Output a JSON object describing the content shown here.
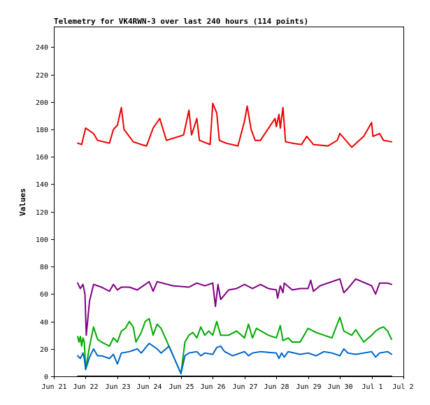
{
  "chart_data": {
    "type": "line",
    "title": "Telemetry for VK4RWN-3 over last 240 hours (114 points)",
    "xlabel": "",
    "ylabel": "Values",
    "xlim": [
      "2021-06-21",
      "2021-07-02"
    ],
    "ylim": [
      0,
      255
    ],
    "x_ticks": [
      "Jun 21",
      "Jun 22",
      "Jun 23",
      "Jun 24",
      "Jun 25",
      "Jun 26",
      "Jun 27",
      "Jun 28",
      "Jun 29",
      "Jun 30",
      "Jul 1",
      "Jul 2"
    ],
    "y_ticks": [
      0,
      20,
      40,
      60,
      80,
      100,
      120,
      140,
      160,
      180,
      200,
      220,
      240
    ],
    "grid": false,
    "legend": "none",
    "series": [
      {
        "color": "#ee0000",
        "points": [
          [
            "2021-06-21T18:00",
            170
          ],
          [
            "2021-06-21T21:00",
            169
          ],
          [
            "2021-06-22T00:00",
            181
          ],
          [
            "2021-06-22T06:00",
            177
          ],
          [
            "2021-06-22T09:00",
            172
          ],
          [
            "2021-06-22T18:00",
            170
          ],
          [
            "2021-06-22T21:00",
            180
          ],
          [
            "2021-06-23T00:00",
            183
          ],
          [
            "2021-06-23T03:00",
            196
          ],
          [
            "2021-06-23T05:00",
            180
          ],
          [
            "2021-06-23T12:00",
            171
          ],
          [
            "2021-06-23T18:00",
            169
          ],
          [
            "2021-06-23T22:00",
            168
          ],
          [
            "2021-06-24T03:00",
            181
          ],
          [
            "2021-06-24T08:00",
            188
          ],
          [
            "2021-06-24T13:00",
            172
          ],
          [
            "2021-06-25T02:00",
            176
          ],
          [
            "2021-06-25T06:00",
            194
          ],
          [
            "2021-06-25T08:00",
            176
          ],
          [
            "2021-06-25T12:00",
            188
          ],
          [
            "2021-06-25T14:00",
            172
          ],
          [
            "2021-06-25T22:00",
            169
          ],
          [
            "2021-06-26T00:00",
            199
          ],
          [
            "2021-06-26T03:00",
            192
          ],
          [
            "2021-06-26T05:00",
            172
          ],
          [
            "2021-06-26T10:00",
            170
          ],
          [
            "2021-06-26T19:00",
            168
          ],
          [
            "2021-06-27T00:00",
            186
          ],
          [
            "2021-06-27T02:00",
            197
          ],
          [
            "2021-06-27T05:00",
            180
          ],
          [
            "2021-06-27T08:00",
            172
          ],
          [
            "2021-06-27T12:00",
            172
          ],
          [
            "2021-06-27T23:00",
            188
          ],
          [
            "2021-06-28T00:00",
            182
          ],
          [
            "2021-06-28T02:00",
            191
          ],
          [
            "2021-06-28T03:00",
            181
          ],
          [
            "2021-06-28T05:00",
            196
          ],
          [
            "2021-06-28T07:00",
            171
          ],
          [
            "2021-06-28T12:00",
            170
          ],
          [
            "2021-06-28T19:00",
            169
          ],
          [
            "2021-06-28T23:00",
            175
          ],
          [
            "2021-06-29T04:00",
            169
          ],
          [
            "2021-06-29T15:00",
            168
          ],
          [
            "2021-06-29T22:00",
            172
          ],
          [
            "2021-06-30T00:00",
            177
          ],
          [
            "2021-06-30T09:00",
            167
          ],
          [
            "2021-06-30T18:00",
            175
          ],
          [
            "2021-07-01T00:00",
            185
          ],
          [
            "2021-07-01T01:00",
            175
          ],
          [
            "2021-07-01T06:00",
            177
          ],
          [
            "2021-07-01T09:00",
            172
          ],
          [
            "2021-07-01T15:00",
            171
          ]
        ]
      },
      {
        "color": "#800080",
        "points": [
          [
            "2021-06-21T18:00",
            68
          ],
          [
            "2021-06-21T20:00",
            64
          ],
          [
            "2021-06-21T22:00",
            67
          ],
          [
            "2021-06-21T23:30",
            60
          ],
          [
            "2021-06-22T00:30",
            30
          ],
          [
            "2021-06-22T03:00",
            55
          ],
          [
            "2021-06-22T06:00",
            67
          ],
          [
            "2021-06-22T12:00",
            65
          ],
          [
            "2021-06-22T18:00",
            62
          ],
          [
            "2021-06-22T21:00",
            67
          ],
          [
            "2021-06-23T00:00",
            63
          ],
          [
            "2021-06-23T03:00",
            65
          ],
          [
            "2021-06-23T09:00",
            65
          ],
          [
            "2021-06-23T15:00",
            63
          ],
          [
            "2021-06-24T00:00",
            69
          ],
          [
            "2021-06-24T03:00",
            62
          ],
          [
            "2021-06-24T06:00",
            69
          ],
          [
            "2021-06-24T18:00",
            66
          ],
          [
            "2021-06-25T06:00",
            65
          ],
          [
            "2021-06-25T12:00",
            68
          ],
          [
            "2021-06-25T18:00",
            66
          ],
          [
            "2021-06-26T00:00",
            68
          ],
          [
            "2021-06-26T02:00",
            51
          ],
          [
            "2021-06-26T04:00",
            67
          ],
          [
            "2021-06-26T06:00",
            56
          ],
          [
            "2021-06-26T12:00",
            63
          ],
          [
            "2021-06-26T18:00",
            64
          ],
          [
            "2021-06-27T00:00",
            67
          ],
          [
            "2021-06-27T06:00",
            64
          ],
          [
            "2021-06-27T12:00",
            67
          ],
          [
            "2021-06-27T18:00",
            64
          ],
          [
            "2021-06-28T00:00",
            63
          ],
          [
            "2021-06-28T01:00",
            57
          ],
          [
            "2021-06-28T03:00",
            66
          ],
          [
            "2021-06-28T05:00",
            61
          ],
          [
            "2021-06-28T06:00",
            68
          ],
          [
            "2021-06-28T12:00",
            63
          ],
          [
            "2021-06-28T18:00",
            64
          ],
          [
            "2021-06-29T00:00",
            64
          ],
          [
            "2021-06-29T02:00",
            70
          ],
          [
            "2021-06-29T04:00",
            62
          ],
          [
            "2021-06-29T09:00",
            66
          ],
          [
            "2021-06-29T12:00",
            67
          ],
          [
            "2021-06-30T00:00",
            71
          ],
          [
            "2021-06-30T03:00",
            61
          ],
          [
            "2021-06-30T06:00",
            64
          ],
          [
            "2021-06-30T12:00",
            71
          ],
          [
            "2021-07-01T00:00",
            66
          ],
          [
            "2021-07-01T03:00",
            60
          ],
          [
            "2021-07-01T06:00",
            68
          ],
          [
            "2021-07-01T12:00",
            68
          ],
          [
            "2021-07-01T15:00",
            67
          ]
        ]
      },
      {
        "color": "#00aa00",
        "points": [
          [
            "2021-06-21T18:00",
            29
          ],
          [
            "2021-06-21T19:00",
            25
          ],
          [
            "2021-06-21T20:00",
            29
          ],
          [
            "2021-06-21T21:00",
            22
          ],
          [
            "2021-06-21T22:00",
            28
          ],
          [
            "2021-06-21T23:00",
            25
          ],
          [
            "2021-06-22T00:00",
            5
          ],
          [
            "2021-06-22T03:00",
            22
          ],
          [
            "2021-06-22T06:00",
            36
          ],
          [
            "2021-06-22T09:00",
            27
          ],
          [
            "2021-06-22T12:00",
            25
          ],
          [
            "2021-06-22T18:00",
            22
          ],
          [
            "2021-06-22T21:00",
            28
          ],
          [
            "2021-06-23T00:00",
            25
          ],
          [
            "2021-06-23T03:00",
            33
          ],
          [
            "2021-06-23T06:00",
            35
          ],
          [
            "2021-06-23T09:00",
            40
          ],
          [
            "2021-06-23T12:00",
            36
          ],
          [
            "2021-06-23T14:00",
            25
          ],
          [
            "2021-06-23T18:00",
            32
          ],
          [
            "2021-06-23T21:00",
            40
          ],
          [
            "2021-06-24T00:00",
            42
          ],
          [
            "2021-06-24T03:00",
            30
          ],
          [
            "2021-06-24T06:00",
            38
          ],
          [
            "2021-06-24T09:00",
            35
          ],
          [
            "2021-06-25T00:00",
            2
          ],
          [
            "2021-06-25T03:00",
            25
          ],
          [
            "2021-06-25T06:00",
            30
          ],
          [
            "2021-06-25T09:00",
            32
          ],
          [
            "2021-06-25T12:00",
            28
          ],
          [
            "2021-06-25T15:00",
            36
          ],
          [
            "2021-06-25T18:00",
            30
          ],
          [
            "2021-06-25T21:00",
            33
          ],
          [
            "2021-06-26T00:00",
            30
          ],
          [
            "2021-06-26T03:00",
            40
          ],
          [
            "2021-06-26T06:00",
            30
          ],
          [
            "2021-06-26T12:00",
            30
          ],
          [
            "2021-06-26T18:00",
            33
          ],
          [
            "2021-06-27T00:00",
            28
          ],
          [
            "2021-06-27T03:00",
            38
          ],
          [
            "2021-06-27T06:00",
            28
          ],
          [
            "2021-06-27T09:00",
            35
          ],
          [
            "2021-06-27T18:00",
            30
          ],
          [
            "2021-06-28T00:00",
            28
          ],
          [
            "2021-06-28T03:00",
            37
          ],
          [
            "2021-06-28T05:00",
            26
          ],
          [
            "2021-06-28T09:00",
            28
          ],
          [
            "2021-06-28T12:00",
            25
          ],
          [
            "2021-06-28T18:00",
            25
          ],
          [
            "2021-06-29T00:00",
            35
          ],
          [
            "2021-06-29T06:00",
            32
          ],
          [
            "2021-06-29T12:00",
            30
          ],
          [
            "2021-06-29T18:00",
            28
          ],
          [
            "2021-06-30T00:00",
            43
          ],
          [
            "2021-06-30T03:00",
            33
          ],
          [
            "2021-06-30T09:00",
            30
          ],
          [
            "2021-06-30T12:00",
            34
          ],
          [
            "2021-06-30T18:00",
            25
          ],
          [
            "2021-07-01T00:00",
            30
          ],
          [
            "2021-07-01T03:00",
            33
          ],
          [
            "2021-07-01T06:00",
            35
          ],
          [
            "2021-07-01T09:00",
            36
          ],
          [
            "2021-07-01T12:00",
            33
          ],
          [
            "2021-07-01T15:00",
            27
          ]
        ]
      },
      {
        "color": "#0066cc",
        "points": [
          [
            "2021-06-21T18:00",
            15
          ],
          [
            "2021-06-21T20:00",
            13
          ],
          [
            "2021-06-21T22:00",
            17
          ],
          [
            "2021-06-21T23:00",
            13
          ],
          [
            "2021-06-22T00:00",
            5
          ],
          [
            "2021-06-22T03:00",
            14
          ],
          [
            "2021-06-22T06:00",
            20
          ],
          [
            "2021-06-22T09:00",
            15
          ],
          [
            "2021-06-22T12:00",
            15
          ],
          [
            "2021-06-22T18:00",
            13
          ],
          [
            "2021-06-22T21:00",
            16
          ],
          [
            "2021-06-23T00:00",
            9
          ],
          [
            "2021-06-23T03:00",
            17
          ],
          [
            "2021-06-23T09:00",
            18
          ],
          [
            "2021-06-23T15:00",
            20
          ],
          [
            "2021-06-23T18:00",
            17
          ],
          [
            "2021-06-24T00:00",
            24
          ],
          [
            "2021-06-24T06:00",
            20
          ],
          [
            "2021-06-24T09:00",
            17
          ],
          [
            "2021-06-24T15:00",
            22
          ],
          [
            "2021-06-25T00:00",
            2
          ],
          [
            "2021-06-25T03:00",
            15
          ],
          [
            "2021-06-25T06:00",
            17
          ],
          [
            "2021-06-25T12:00",
            18
          ],
          [
            "2021-06-25T15:00",
            15
          ],
          [
            "2021-06-25T18:00",
            17
          ],
          [
            "2021-06-26T00:00",
            16
          ],
          [
            "2021-06-26T03:00",
            21
          ],
          [
            "2021-06-26T06:00",
            22
          ],
          [
            "2021-06-26T09:00",
            18
          ],
          [
            "2021-06-26T15:00",
            15
          ],
          [
            "2021-06-27T00:00",
            18
          ],
          [
            "2021-06-27T03:00",
            15
          ],
          [
            "2021-06-27T06:00",
            17
          ],
          [
            "2021-06-27T12:00",
            18
          ],
          [
            "2021-06-28T00:00",
            17
          ],
          [
            "2021-06-28T02:00",
            13
          ],
          [
            "2021-06-28T04:00",
            17
          ],
          [
            "2021-06-28T06:00",
            14
          ],
          [
            "2021-06-28T09:00",
            18
          ],
          [
            "2021-06-28T18:00",
            16
          ],
          [
            "2021-06-29T00:00",
            17
          ],
          [
            "2021-06-29T06:00",
            15
          ],
          [
            "2021-06-29T12:00",
            18
          ],
          [
            "2021-06-29T18:00",
            17
          ],
          [
            "2021-06-30T00:00",
            15
          ],
          [
            "2021-06-30T03:00",
            20
          ],
          [
            "2021-06-30T06:00",
            17
          ],
          [
            "2021-06-30T12:00",
            16
          ],
          [
            "2021-06-30T18:00",
            17
          ],
          [
            "2021-07-01T00:00",
            18
          ],
          [
            "2021-07-01T03:00",
            14
          ],
          [
            "2021-07-01T06:00",
            17
          ],
          [
            "2021-07-01T12:00",
            18
          ],
          [
            "2021-07-01T15:00",
            16
          ]
        ]
      },
      {
        "color": "#000000",
        "points": [
          [
            "2021-06-21T18:00",
            0
          ],
          [
            "2021-07-01T15:00",
            0
          ]
        ]
      }
    ]
  }
}
